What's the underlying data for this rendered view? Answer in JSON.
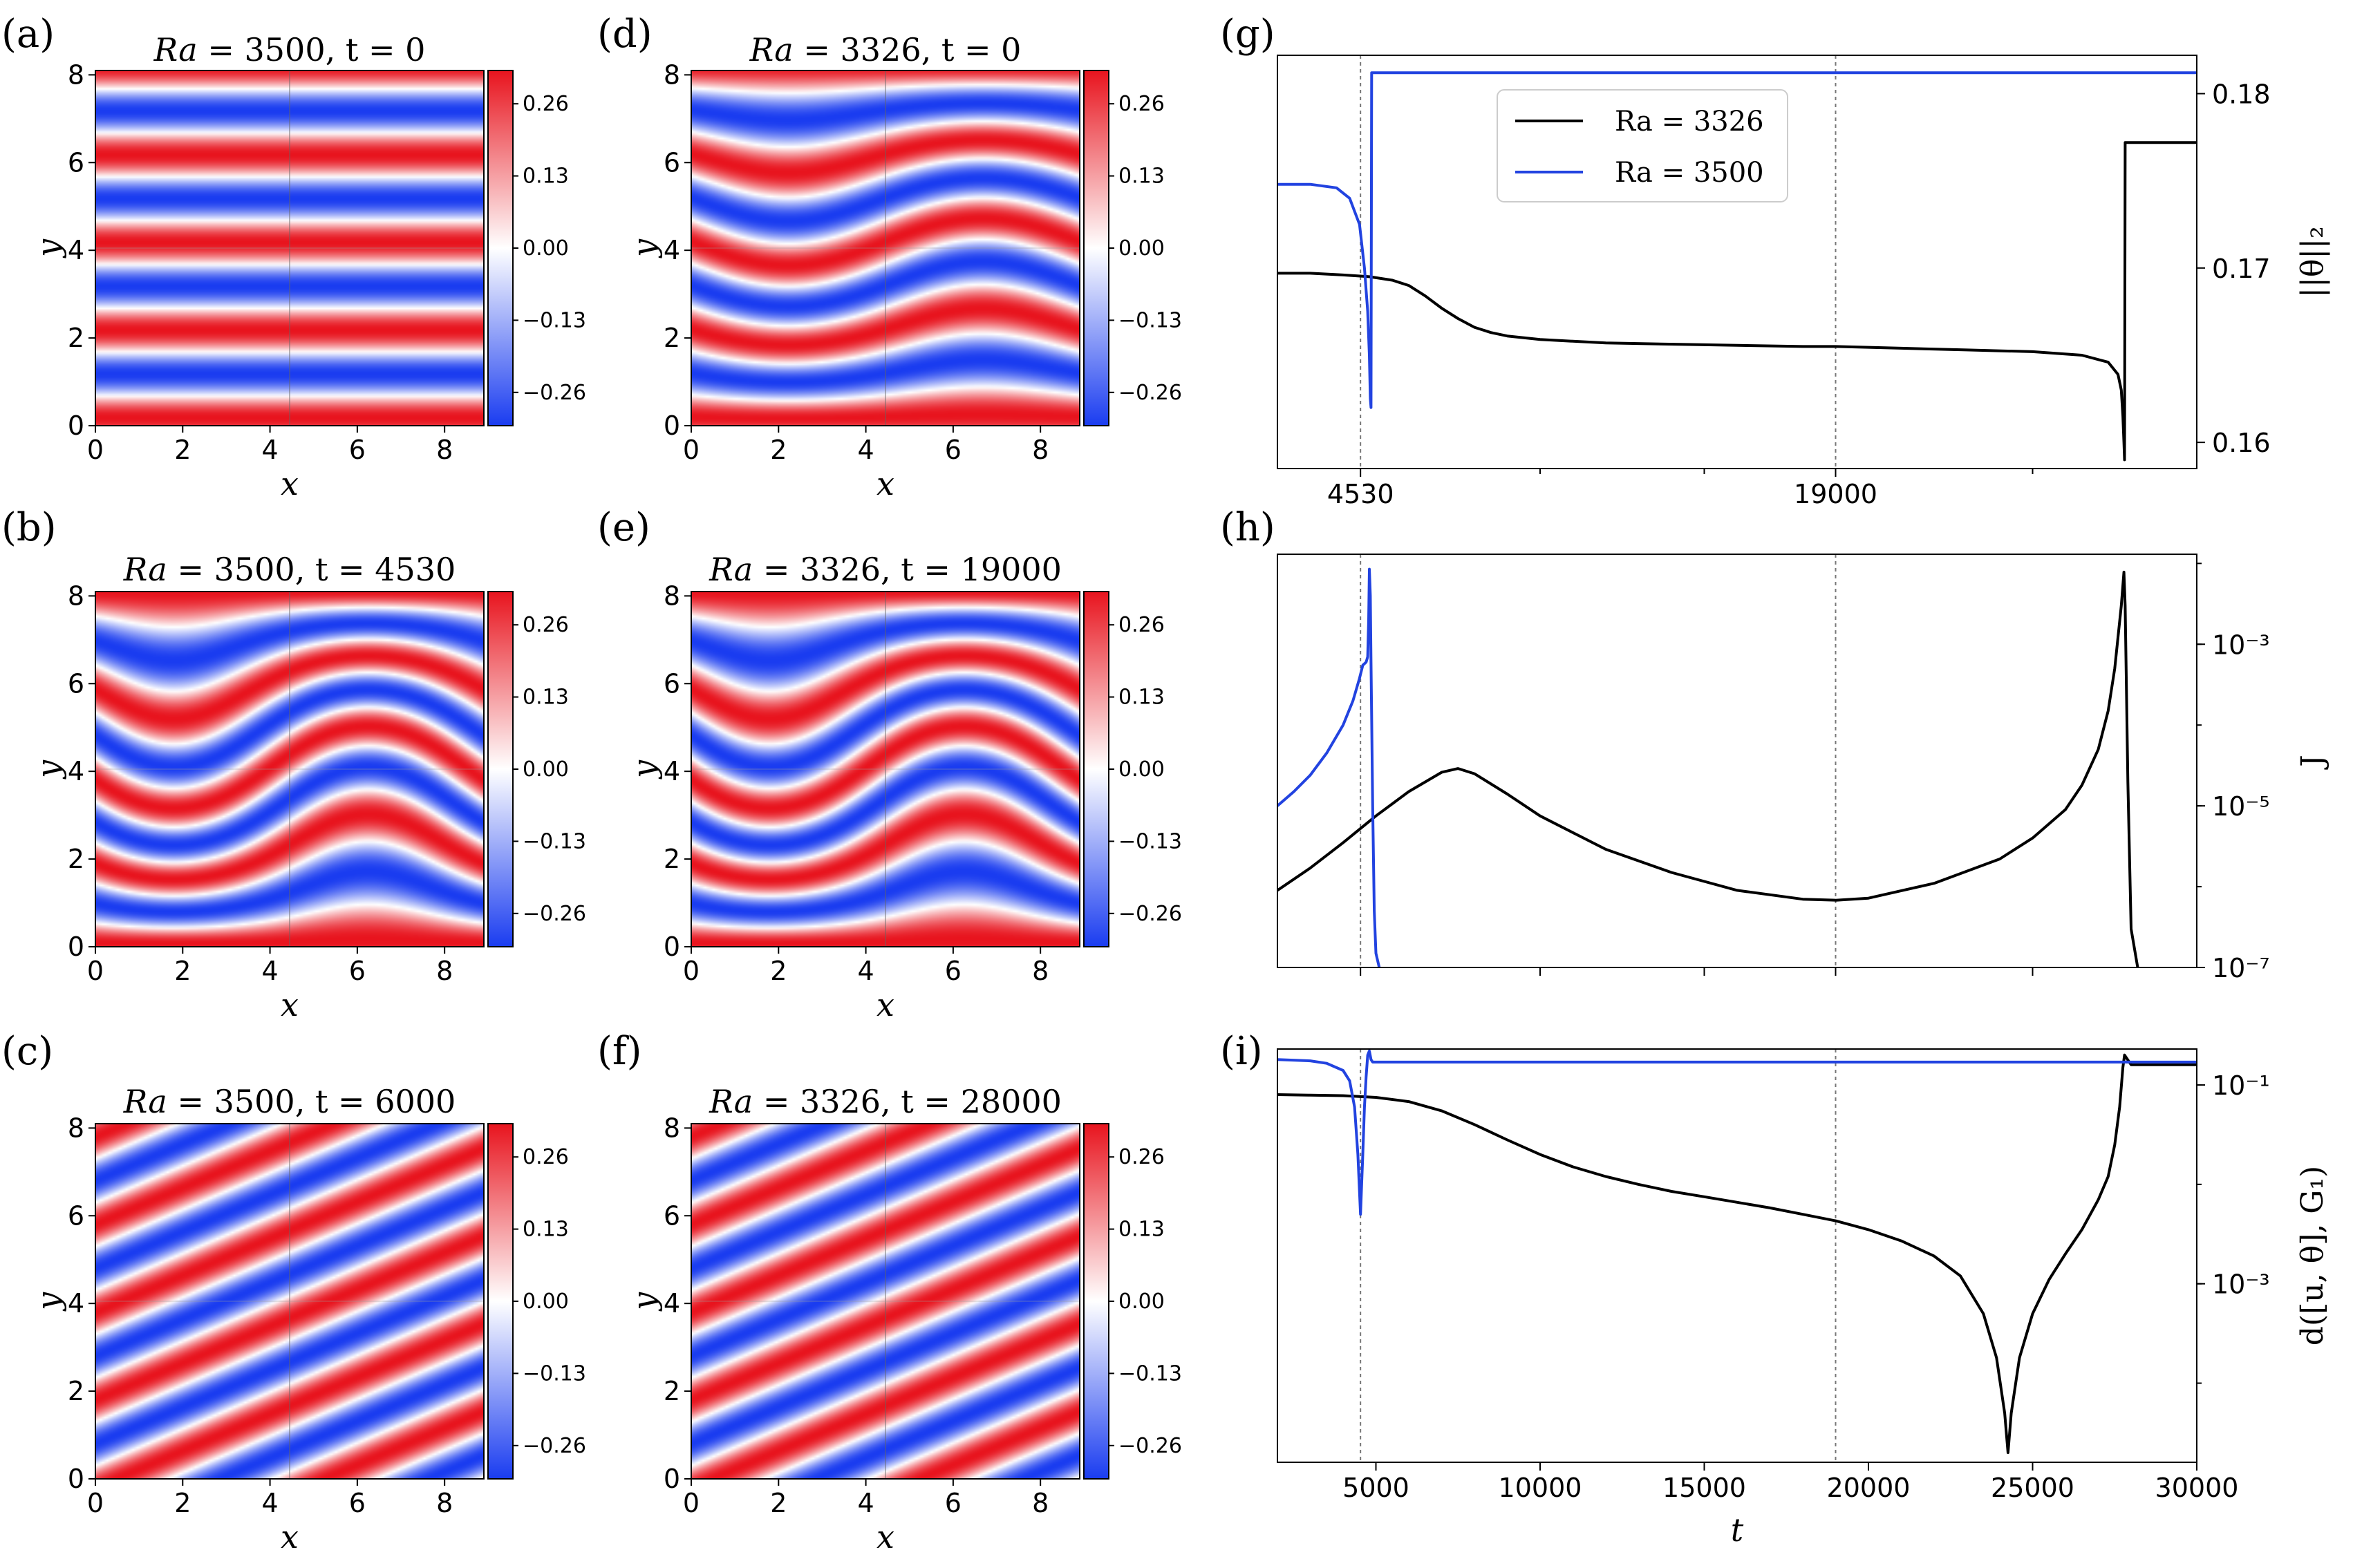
{
  "colormap": {
    "red": "#e8141e",
    "white": "#ffffff",
    "blue": "#1a3cf0"
  },
  "colors": {
    "ra3326": "#000000",
    "ra3500": "#2243e0"
  },
  "fields": [
    {
      "label": "(a)",
      "title_pre": "Ra",
      "title_post": " = 3500, t = 0",
      "pattern": "horizontal",
      "Ra": 3500,
      "t": 0
    },
    {
      "label": "(b)",
      "title_pre": "Ra",
      "title_post": " = 3500, t = 4530",
      "pattern": "wavy",
      "Ra": 3500,
      "t": 4530
    },
    {
      "label": "(c)",
      "title_pre": "Ra",
      "title_post": " = 3500, t = 6000",
      "pattern": "oblique",
      "Ra": 3500,
      "t": 6000
    },
    {
      "label": "(d)",
      "title_pre": "Ra",
      "title_post": " = 3326, t = 0",
      "pattern": "mildwavy",
      "Ra": 3326,
      "t": 0
    },
    {
      "label": "(e)",
      "title_pre": "Ra",
      "title_post": " = 3326, t = 19000",
      "pattern": "wavy",
      "Ra": 3326,
      "t": 19000
    },
    {
      "label": "(f)",
      "title_pre": "Ra",
      "title_post": " = 3326, t = 28000",
      "pattern": "oblique",
      "Ra": 3326,
      "t": 28000
    }
  ],
  "field_axes": {
    "xlabel": "x",
    "ylabel": "y",
    "xticks": [
      "0",
      "2",
      "4",
      "6",
      "8"
    ],
    "yticks": [
      "0",
      "2",
      "4",
      "6",
      "8"
    ],
    "xlim": [
      0,
      8.9
    ],
    "ylim": [
      0,
      8.1
    ],
    "colorbar_ticks": [
      "0.26",
      "0.13",
      "0.00",
      "−0.13",
      "−0.26"
    ],
    "colorbar_values": [
      0.26,
      0.13,
      0.0,
      -0.13,
      -0.26
    ],
    "colorbar_range": [
      -0.32,
      0.32
    ]
  },
  "chart_data": [
    {
      "type": "line",
      "label": "(g)",
      "ylabel": "||θ||₂",
      "xlim": [
        2000,
        30000
      ],
      "ylim": [
        0.1585,
        0.1822
      ],
      "yscale": "linear",
      "yticks": [
        0.16,
        0.17,
        0.18
      ],
      "ytick_labels": [
        "0.16",
        "0.17",
        "0.18"
      ],
      "xticks": [
        4530,
        19000
      ],
      "xtick_labels": [
        "4530",
        "19000"
      ],
      "minor_xticks": [
        10000,
        15000,
        25000
      ],
      "vlines": [
        4530,
        19000
      ],
      "legend": [
        "Ra = 3326",
        "Ra = 3500"
      ],
      "series": [
        {
          "name": "Ra = 3326",
          "x": [
            2000,
            3000,
            4000,
            4800,
            5500,
            6000,
            6500,
            7000,
            7500,
            8000,
            8500,
            9000,
            10000,
            12000,
            15000,
            18000,
            19000,
            21000,
            23000,
            25000,
            26500,
            27300,
            27600,
            27700,
            27750,
            27780,
            27800,
            27820,
            27840,
            30000
          ],
          "y": [
            0.1697,
            0.1697,
            0.1696,
            0.1695,
            0.1693,
            0.169,
            0.1684,
            0.1677,
            0.1671,
            0.1666,
            0.1663,
            0.1661,
            0.1659,
            0.1657,
            0.1656,
            0.1655,
            0.1655,
            0.1654,
            0.1653,
            0.1652,
            0.165,
            0.1646,
            0.1639,
            0.163,
            0.1615,
            0.16,
            0.159,
            0.1772,
            0.1772,
            0.1772
          ]
        },
        {
          "name": "Ra = 3500",
          "x": [
            2000,
            3000,
            3800,
            4200,
            4500,
            4650,
            4750,
            4800,
            4830,
            4850,
            4870,
            4900,
            30000
          ],
          "y": [
            0.1748,
            0.1748,
            0.1746,
            0.174,
            0.1725,
            0.17,
            0.1675,
            0.165,
            0.1625,
            0.162,
            0.1812,
            0.1812,
            0.1812
          ]
        }
      ]
    },
    {
      "type": "line",
      "label": "(h)",
      "ylabel": "J",
      "xlim": [
        2000,
        30000
      ],
      "ylim": [
        1e-07,
        0.013
      ],
      "yscale": "log",
      "yticks": [
        1e-07,
        1e-05,
        0.001
      ],
      "ytick_labels": [
        "10⁻⁷",
        "10⁻⁵",
        "10⁻³"
      ],
      "xticks": [
        4530,
        10000,
        15000,
        19000,
        25000
      ],
      "xtick_labels": [],
      "vlines": [
        4530,
        19000
      ],
      "series": [
        {
          "name": "Ra = 3326",
          "x": [
            2000,
            3000,
            4000,
            5000,
            6000,
            7000,
            7500,
            8000,
            9000,
            10000,
            12000,
            14000,
            16000,
            18000,
            19000,
            20000,
            22000,
            24000,
            25000,
            26000,
            26500,
            27000,
            27300,
            27500,
            27700,
            27780,
            27820,
            27900,
            28000,
            28200
          ],
          "y": [
            9e-07,
            1.7e-06,
            3.5e-06,
            7.5e-06,
            1.5e-05,
            2.6e-05,
            2.9e-05,
            2.5e-05,
            1.4e-05,
            7.5e-06,
            2.9e-06,
            1.5e-06,
            9e-07,
            7e-07,
            6.8e-07,
            7.2e-07,
            1.1e-06,
            2.2e-06,
            4e-06,
            9e-06,
            1.8e-05,
            5e-05,
            0.00015,
            0.0005,
            0.003,
            0.0078,
            0.003,
            2e-05,
            3e-07,
            1e-07
          ]
        },
        {
          "name": "Ra = 3500",
          "x": [
            2000,
            2500,
            3000,
            3500,
            4000,
            4300,
            4500,
            4600,
            4700,
            4750,
            4780,
            4800,
            4830,
            4850,
            4900,
            4950,
            5000,
            5100
          ],
          "y": [
            1e-05,
            1.5e-05,
            2.4e-05,
            4.5e-05,
            0.0001,
            0.0002,
            0.00038,
            0.00055,
            0.0006,
            0.0007,
            0.002,
            0.0085,
            0.004,
            0.0006,
            1e-05,
            5e-07,
            1.5e-07,
            1e-07
          ]
        }
      ]
    },
    {
      "type": "line",
      "label": "(i)",
      "ylabel": "d([u, θ], G₁)",
      "xlabel": "t",
      "xlim": [
        2000,
        30000
      ],
      "ylim": [
        1.6e-05,
        0.23
      ],
      "yscale": "log",
      "yticks": [
        0.001,
        0.1
      ],
      "ytick_labels": [
        "10⁻³",
        "10⁻¹"
      ],
      "xticks": [
        5000,
        10000,
        15000,
        20000,
        25000,
        30000
      ],
      "xtick_labels": [
        "5000",
        "10000",
        "15000",
        "20000",
        "25000",
        "30000"
      ],
      "vlines": [
        4530,
        19000
      ],
      "series": [
        {
          "name": "Ra = 3326",
          "x": [
            2000,
            3000,
            4000,
            5000,
            6000,
            7000,
            8000,
            9000,
            10000,
            11000,
            12000,
            13000,
            14000,
            15000,
            16000,
            17000,
            18000,
            19000,
            20000,
            21000,
            22000,
            22800,
            23500,
            23900,
            24150,
            24250,
            24350,
            24600,
            25000,
            25500,
            26000,
            26500,
            27000,
            27300,
            27500,
            27650,
            27750,
            27800,
            28000,
            30000
          ],
          "y": [
            0.08,
            0.079,
            0.078,
            0.075,
            0.068,
            0.055,
            0.04,
            0.028,
            0.02,
            0.015,
            0.012,
            0.01,
            0.0085,
            0.0075,
            0.0066,
            0.0058,
            0.005,
            0.0043,
            0.0035,
            0.0027,
            0.0019,
            0.0012,
            0.0005,
            0.00018,
            5e-05,
            2e-05,
            5e-05,
            0.00018,
            0.0005,
            0.0011,
            0.002,
            0.0035,
            0.007,
            0.012,
            0.025,
            0.06,
            0.15,
            0.2,
            0.16,
            0.16
          ]
        },
        {
          "name": "Ra = 3500",
          "x": [
            2000,
            3000,
            3500,
            4000,
            4200,
            4350,
            4450,
            4530,
            4600,
            4650,
            4700,
            4750,
            4800,
            4850,
            4900,
            5000,
            30000
          ],
          "y": [
            0.18,
            0.175,
            0.165,
            0.14,
            0.11,
            0.06,
            0.02,
            0.005,
            0.02,
            0.06,
            0.12,
            0.2,
            0.22,
            0.18,
            0.17,
            0.17,
            0.17
          ]
        }
      ]
    }
  ],
  "legend": {
    "items": [
      "Ra = 3326",
      "Ra = 3500"
    ]
  },
  "i_xlabel": "t"
}
